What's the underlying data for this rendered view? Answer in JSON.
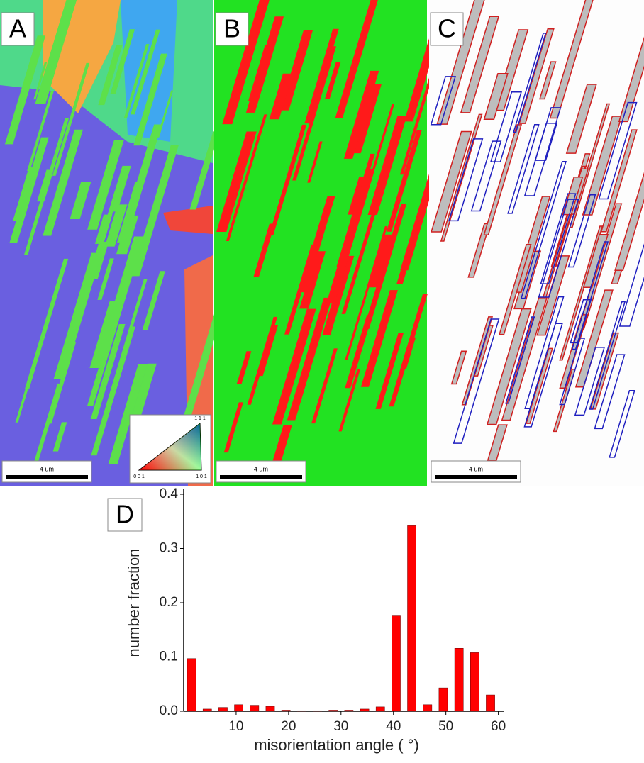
{
  "panels": [
    {
      "label": "A",
      "scale_bar": "4 um",
      "legend": {
        "top": "1 1 1",
        "left": "0 0 1",
        "right": "1 0 1"
      }
    },
    {
      "label": "B",
      "scale_bar": "4 um"
    },
    {
      "label": "C",
      "scale_bar": "4 um"
    }
  ],
  "chart_data": {
    "type": "bar",
    "label": "D",
    "x_label": "misorientation angle ( °)",
    "y_label": "number fraction",
    "x": [
      1.5,
      4.5,
      7.5,
      10.5,
      13.5,
      16.5,
      19.5,
      22.5,
      25.5,
      28.5,
      31.5,
      34.5,
      37.5,
      40.5,
      43.5,
      46.5,
      49.5,
      52.5,
      55.5,
      58.5
    ],
    "values": [
      0.097,
      0.004,
      0.007,
      0.012,
      0.011,
      0.009,
      0.002,
      0.001,
      0.001,
      0.002,
      0.002,
      0.004,
      0.008,
      0.177,
      0.342,
      0.012,
      0.043,
      0.116,
      0.108,
      0.03
    ],
    "color": "#ff0000",
    "xlim": [
      0,
      61
    ],
    "xticks": [
      10,
      20,
      30,
      40,
      50,
      60
    ],
    "ylim": [
      0,
      0.4
    ],
    "yticks": [
      {
        "value": 0,
        "label": "0.0"
      },
      0.1,
      0.2,
      0.3,
      0.4
    ]
  }
}
